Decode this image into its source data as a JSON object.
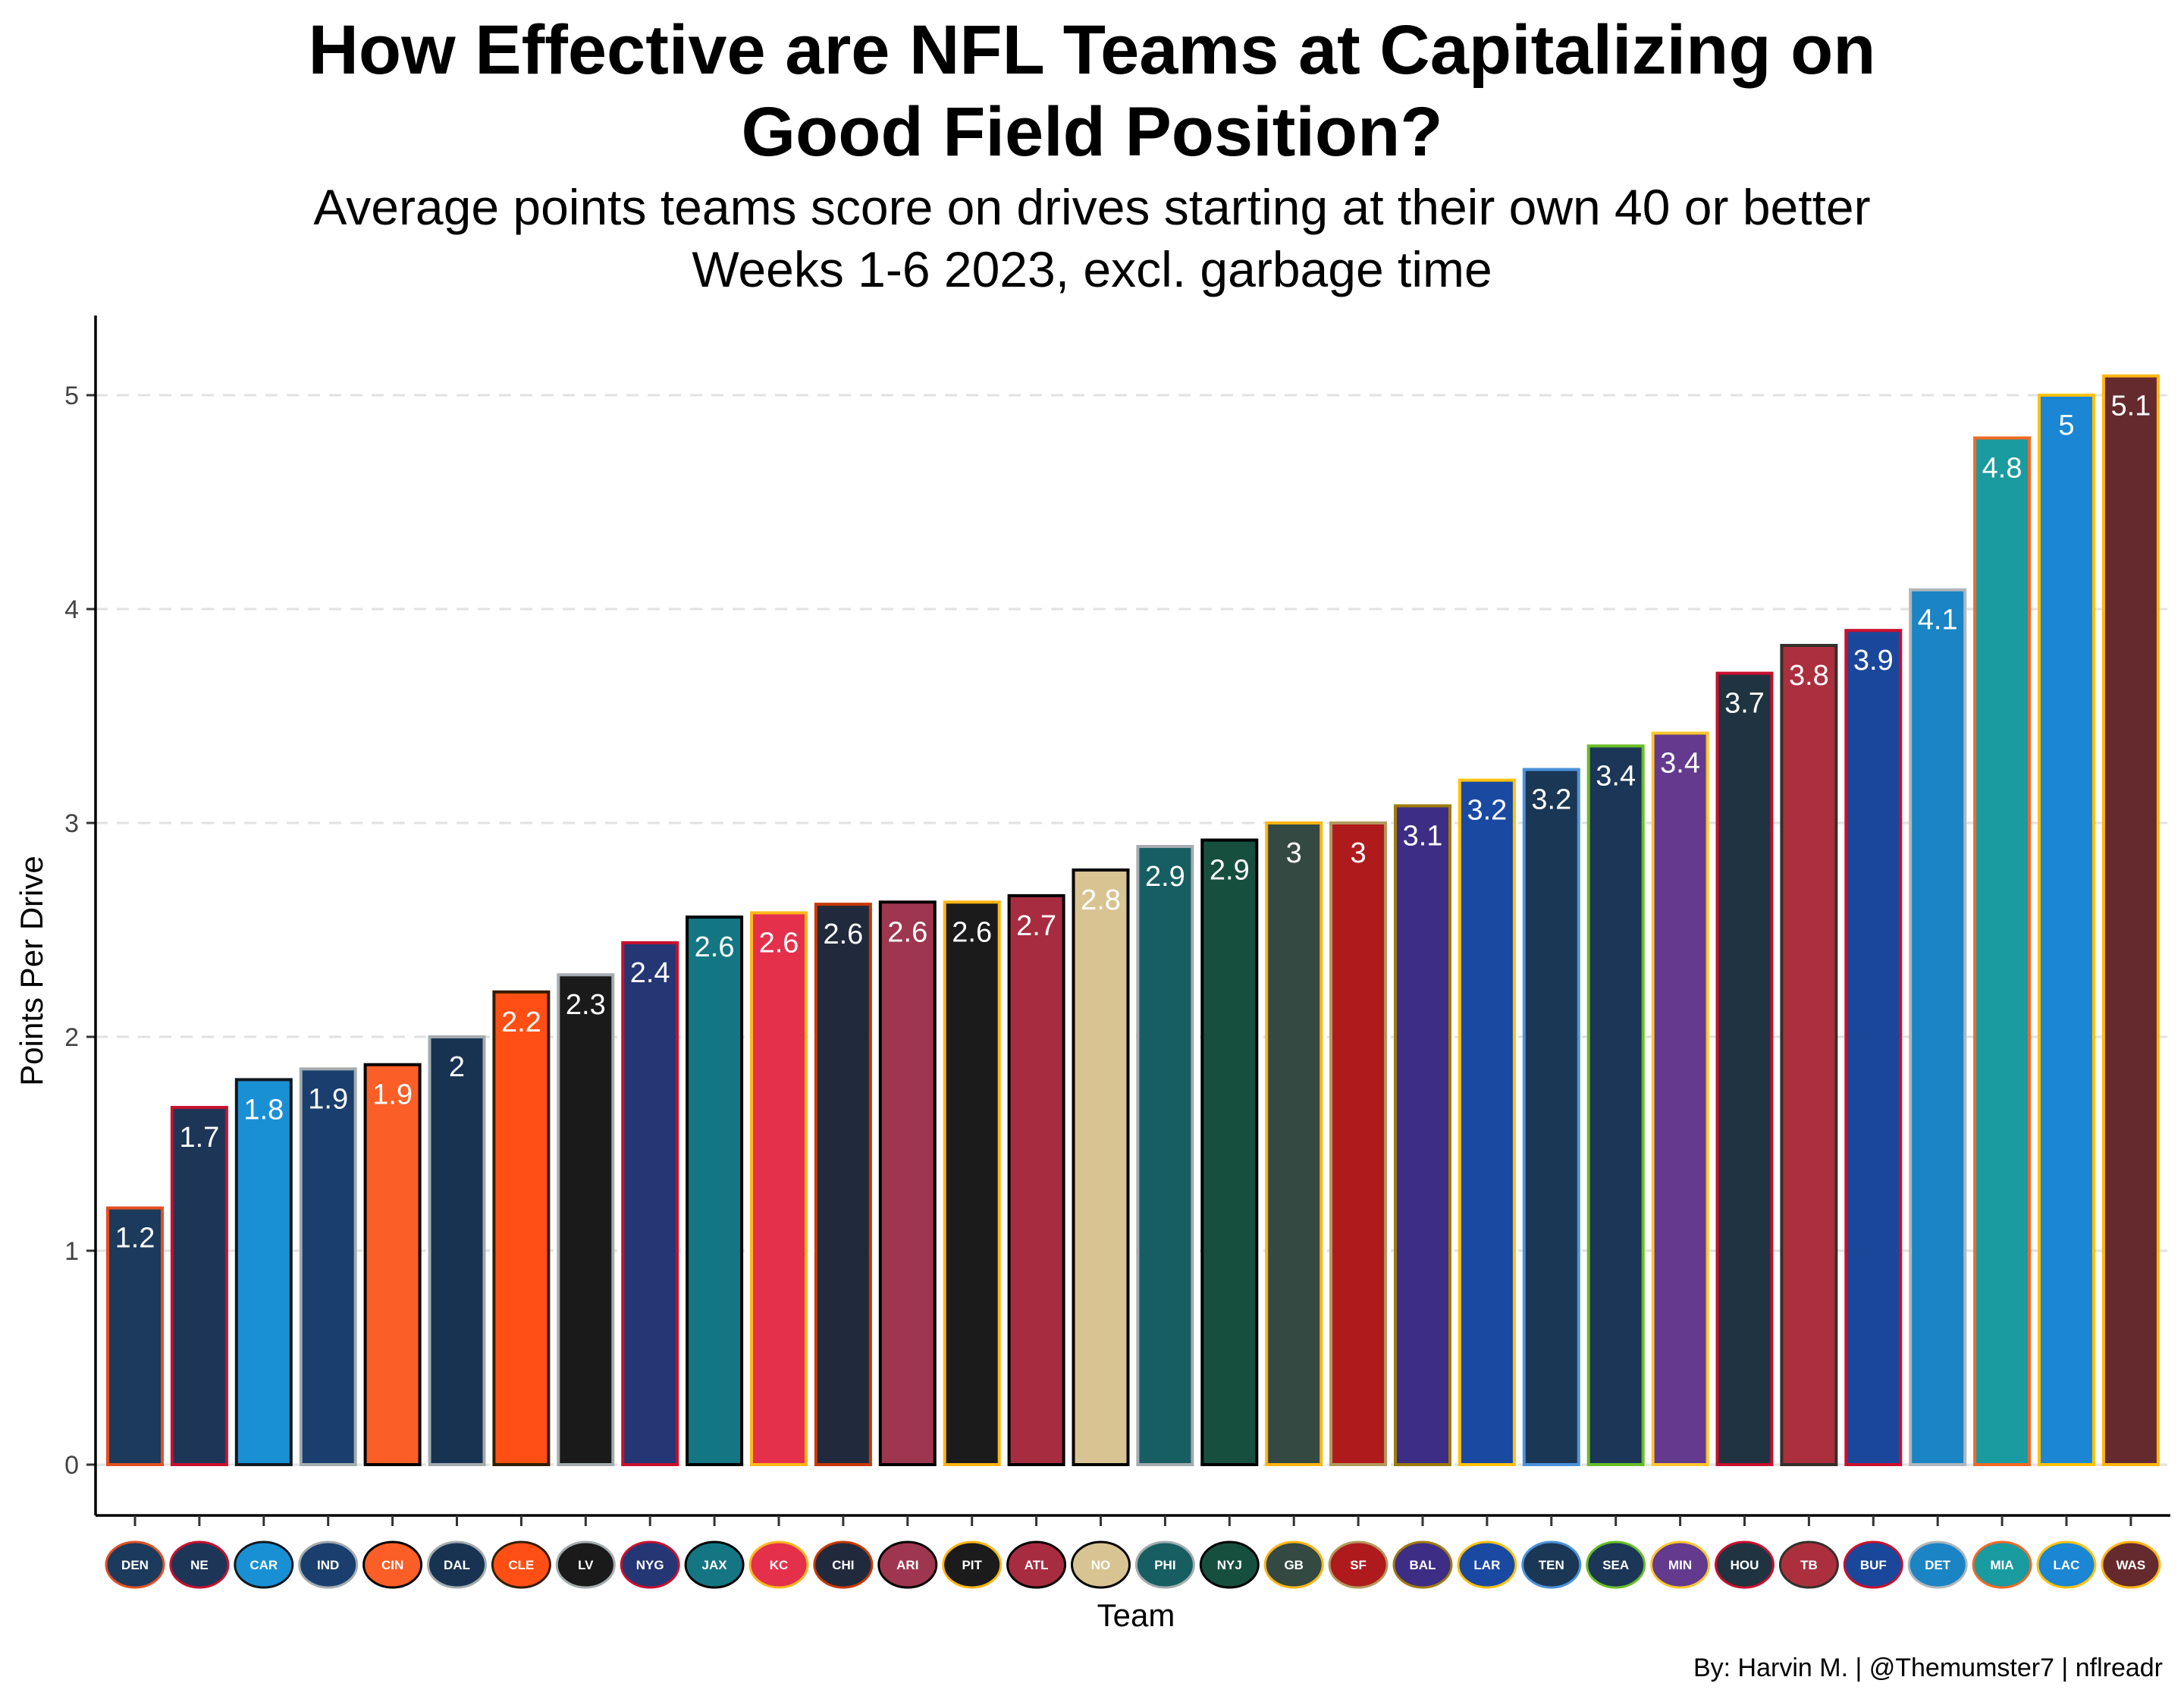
{
  "title_line1": "How Effective are NFL Teams at Capitalizing on",
  "title_line2": "Good Field Position?",
  "subtitle_line1": "Average points teams score on drives starting at their own 40 or better",
  "subtitle_line2": "Weeks 1-6 2023, excl. garbage time",
  "caption": "By: Harvin M. | @Themumster7 | nflreadr",
  "chart_data": {
    "type": "bar",
    "xlabel": "Team",
    "ylabel": "Points Per Drive",
    "ylim": [
      -0.25,
      5.35
    ],
    "yticks": [
      0,
      1,
      2,
      3,
      4,
      5
    ],
    "grid": "horizontal-dashed",
    "categories": [
      "DEN",
      "NE",
      "CAR",
      "IND",
      "CIN",
      "DAL",
      "CLE",
      "LV",
      "NYG",
      "JAX",
      "KC",
      "CHI",
      "ARI",
      "PIT",
      "ATL",
      "NO",
      "PHI",
      "NYJ",
      "GB",
      "SF",
      "BAL",
      "LAR",
      "TEN",
      "SEA",
      "MIN",
      "HOU",
      "TB",
      "BUF",
      "DET",
      "MIA",
      "LAC",
      "WAS"
    ],
    "values": [
      1.2,
      1.67,
      1.8,
      1.85,
      1.87,
      2.0,
      2.21,
      2.29,
      2.44,
      2.56,
      2.58,
      2.62,
      2.63,
      2.63,
      2.66,
      2.78,
      2.89,
      2.92,
      3.0,
      3.0,
      3.08,
      3.2,
      3.25,
      3.36,
      3.42,
      3.7,
      3.83,
      3.9,
      4.09,
      4.8,
      5.0,
      5.09
    ],
    "labels": [
      "1.2",
      "1.7",
      "1.8",
      "1.9",
      "1.9",
      "2",
      "2.2",
      "2.3",
      "2.4",
      "2.6",
      "2.6",
      "2.6",
      "2.6",
      "2.6",
      "2.7",
      "2.8",
      "2.9",
      "2.9",
      "3",
      "3",
      "3.1",
      "3.2",
      "3.2",
      "3.4",
      "3.4",
      "3.7",
      "3.8",
      "3.9",
      "4.1",
      "4.8",
      "5",
      "5.1"
    ],
    "fill_colors": [
      "#1b3a5c",
      "#1d3557",
      "#1a90d4",
      "#1a3f6e",
      "#fb5e26",
      "#183352",
      "#ff4f14",
      "#1a1a1a",
      "#253675",
      "#147683",
      "#e4304b",
      "#212a3c",
      "#9e364f",
      "#1b1b1b",
      "#a72c40",
      "#d8c492",
      "#175e62",
      "#174f3f",
      "#334942",
      "#af1a1d",
      "#3e2d85",
      "#1a49a2",
      "#1b3756",
      "#1b3656",
      "#643a8f",
      "#1f3440",
      "#ac2f3e",
      "#1b479b",
      "#1a84c4",
      "#1a9ba0",
      "#1a86d4",
      "#652a2d"
    ],
    "border_colors": [
      "#e34f22",
      "#c8102e",
      "#101820",
      "#a5acaf",
      "#000000",
      "#a5acaf",
      "#311d00",
      "#a5acaf",
      "#c8102e",
      "#000000",
      "#ffb81c",
      "#c83803",
      "#000000",
      "#ffb612",
      "#000000",
      "#000000",
      "#a5acaf",
      "#000000",
      "#ffb612",
      "#b3995d",
      "#9e7c0c",
      "#ffc20e",
      "#4b92db",
      "#69be28",
      "#ffc62f",
      "#c8102e",
      "#34302b",
      "#c8102e",
      "#b0b7bc",
      "#f26a24",
      "#ffc20e",
      "#ffb612"
    ]
  }
}
